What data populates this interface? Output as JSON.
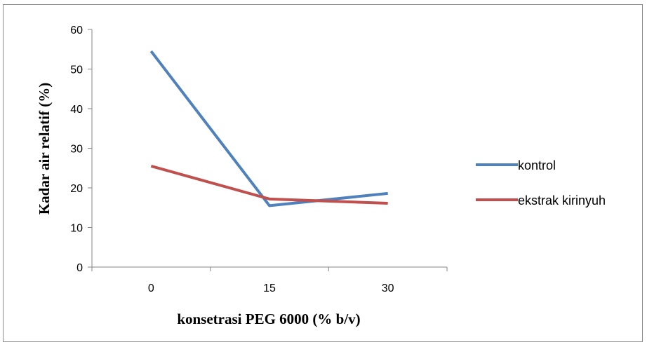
{
  "chart_data": {
    "type": "line",
    "categories": [
      "0",
      "15",
      "30"
    ],
    "series": [
      {
        "name": "kontrol",
        "values": [
          54.5,
          15.5,
          18.6
        ],
        "color": "#4f81bd"
      },
      {
        "name": "ekstrak kirinyuh",
        "values": [
          25.5,
          17.2,
          16.1
        ],
        "color": "#c0504d"
      }
    ],
    "y_ticks": [
      "0",
      "10",
      "20",
      "30",
      "40",
      "50",
      "60"
    ],
    "ylim": [
      0,
      60
    ],
    "xlabel": "konsetrasi PEG 6000 (% b/v)",
    "ylabel": "Kadar air relatif (%)",
    "legend_position": "right",
    "grid": false
  }
}
